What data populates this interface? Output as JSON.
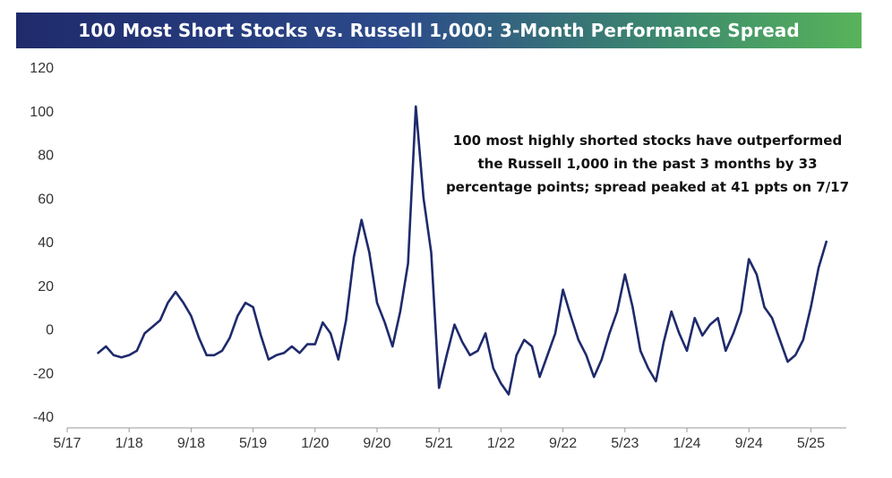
{
  "chart_data": {
    "type": "line",
    "title": "100 Most Short Stocks vs. Russell 1,000: 3-Month Performance Spread",
    "annotation": [
      "100 most highly shorted stocks have outperformed",
      "the Russell 1,000 in the past 3 months by 33",
      "percentage points; spread peaked at 41 ppts on 7/17"
    ],
    "ylim": [
      -40,
      120
    ],
    "yticks": [
      -40,
      -20,
      0,
      20,
      40,
      60,
      80,
      100,
      120
    ],
    "ytick_labels": [
      "-40",
      "-20",
      "0",
      "20",
      "40",
      "60",
      "80",
      "100",
      "120"
    ],
    "xticks": [
      "2017-05",
      "2018-01",
      "2018-09",
      "2019-05",
      "2020-01",
      "2020-09",
      "2021-05",
      "2022-01",
      "2022-09",
      "2023-05",
      "2024-01",
      "2024-09",
      "2025-05"
    ],
    "xtick_labels": [
      "5/17",
      "1/18",
      "9/18",
      "5/19",
      "1/20",
      "9/20",
      "5/21",
      "1/22",
      "9/22",
      "5/23",
      "1/24",
      "9/24",
      "5/25"
    ],
    "xlim": [
      "2017-05",
      "2025-09"
    ],
    "line_color": "#1f2a6b",
    "series": [
      {
        "x": [
          "2017-09",
          "2017-10",
          "2017-11",
          "2017-12",
          "2018-01",
          "2018-02",
          "2018-03",
          "2018-04",
          "2018-05",
          "2018-06",
          "2018-07",
          "2018-08",
          "2018-09",
          "2018-10",
          "2018-11",
          "2018-12",
          "2019-01",
          "2019-02",
          "2019-03",
          "2019-04",
          "2019-05",
          "2019-06",
          "2019-07",
          "2019-08",
          "2019-09",
          "2019-10",
          "2019-11",
          "2019-12",
          "2020-01",
          "2020-02",
          "2020-03",
          "2020-04",
          "2020-05",
          "2020-06",
          "2020-07",
          "2020-08",
          "2020-09",
          "2020-10",
          "2020-11",
          "2020-12",
          "2021-01",
          "2021-02",
          "2021-03",
          "2021-04",
          "2021-05",
          "2021-06",
          "2021-07",
          "2021-08",
          "2021-09",
          "2021-10",
          "2021-11",
          "2021-12",
          "2022-01",
          "2022-02",
          "2022-03",
          "2022-04",
          "2022-05",
          "2022-06",
          "2022-07",
          "2022-08",
          "2022-09",
          "2022-10",
          "2022-11",
          "2022-12",
          "2023-01",
          "2023-02",
          "2023-03",
          "2023-04",
          "2023-05",
          "2023-06",
          "2023-07",
          "2023-08",
          "2023-09",
          "2023-10",
          "2023-11",
          "2023-12",
          "2024-01",
          "2024-02",
          "2024-03",
          "2024-04",
          "2024-05",
          "2024-06",
          "2024-07",
          "2024-08",
          "2024-09",
          "2024-10",
          "2024-11",
          "2024-12",
          "2025-01",
          "2025-02",
          "2025-03",
          "2025-04",
          "2025-05",
          "2025-06",
          "2025-07"
        ],
        "values": [
          -11,
          -8,
          -12,
          -13,
          -12,
          -10,
          -2,
          1,
          4,
          12,
          17,
          12,
          6,
          -4,
          -12,
          -12,
          -10,
          -4,
          6,
          12,
          10,
          -3,
          -14,
          -12,
          -11,
          -8,
          -11,
          -7,
          -7,
          3,
          -2,
          -14,
          4,
          33,
          50,
          35,
          12,
          3,
          -8,
          8,
          30,
          102,
          60,
          35,
          -27,
          -12,
          2,
          -6,
          -12,
          -10,
          -2,
          -18,
          -25,
          -30,
          -12,
          -5,
          -8,
          -22,
          -12,
          -2,
          18,
          6,
          -5,
          -12,
          -22,
          -14,
          -2,
          8,
          25,
          10,
          -10,
          -18,
          -24,
          -6,
          8,
          -2,
          -10,
          5,
          -3,
          2,
          5,
          -10,
          -2,
          8,
          32,
          25,
          10,
          5,
          -5,
          -15,
          -12,
          -5,
          10,
          28,
          40
        ]
      }
    ]
  }
}
